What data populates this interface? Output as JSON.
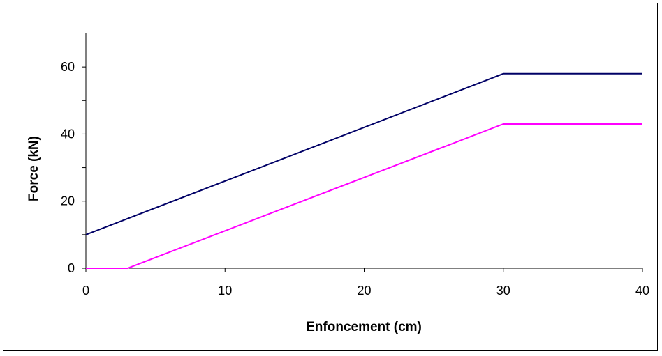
{
  "chart_data": {
    "type": "line",
    "title": "",
    "xlabel": "Enfoncement (cm)",
    "ylabel": "Force (kN)",
    "xlim": [
      0,
      40
    ],
    "ylim": [
      0,
      70
    ],
    "x_ticks": [
      0,
      10,
      20,
      30,
      40
    ],
    "y_ticks": [
      0,
      20,
      40,
      60
    ],
    "x_tick_labels": [
      "0",
      "10",
      "20",
      "30",
      "40"
    ],
    "y_tick_labels": [
      "0",
      "20",
      "40",
      "60"
    ],
    "grid": false,
    "legend": "none",
    "series": [
      {
        "color": "#000066",
        "points": [
          [
            0,
            10
          ],
          [
            30,
            58
          ],
          [
            40,
            58
          ]
        ]
      },
      {
        "color": "#ff00ff",
        "points": [
          [
            0,
            0
          ],
          [
            3,
            0
          ],
          [
            30,
            43
          ],
          [
            40,
            43
          ]
        ]
      }
    ]
  }
}
